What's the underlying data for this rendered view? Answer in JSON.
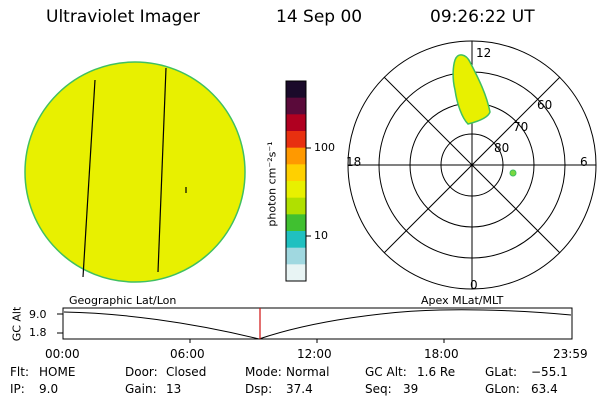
{
  "header": {
    "title": "Ultraviolet Imager",
    "date": "14 Sep 00",
    "time": "09:26:22 UT"
  },
  "colorbar": {
    "unit_label": "photon cm⁻²s⁻¹",
    "ticks": [
      "100",
      "10"
    ],
    "colors": [
      "#1a0a2a",
      "#5a0a3a",
      "#b00020",
      "#e83010",
      "#ff9900",
      "#ffd000",
      "#e8f000",
      "#b0e000",
      "#40c030",
      "#20c0c0",
      "#a0d8e0",
      "#e8f4f4"
    ]
  },
  "polar_plot": {
    "mlt_labels": {
      "top": "12",
      "left": "18",
      "right": "6",
      "bottom": "0"
    },
    "lat_labels": [
      "60",
      "70",
      "80"
    ]
  },
  "altitude_plot": {
    "left_title": "Geographic Lat/Lon",
    "right_title": "Apex  MLat/MLT",
    "ylabel": "GC Alt",
    "ymax": "9.0",
    "ymin": "1.8",
    "time_ticks": [
      "00:00",
      "06:00",
      "12:00",
      "18:00",
      "23:59"
    ]
  },
  "status": {
    "row1": [
      {
        "label": "Flt:",
        "value": "HOME"
      },
      {
        "label": "Door:",
        "value": "Closed"
      },
      {
        "label": "Mode:",
        "value": "Normal"
      },
      {
        "label": "GC Alt:",
        "value": "1.6 Re"
      },
      {
        "label": "GLat:",
        "value": "−55.1"
      }
    ],
    "row2": [
      {
        "label": "IP:",
        "value": "9.0"
      },
      {
        "label": "Gain:",
        "value": "13"
      },
      {
        "label": "Dsp:",
        "value": "37.4"
      },
      {
        "label": "Seq:",
        "value": "39"
      },
      {
        "label": "GLon:",
        "value": "63.4"
      }
    ]
  }
}
